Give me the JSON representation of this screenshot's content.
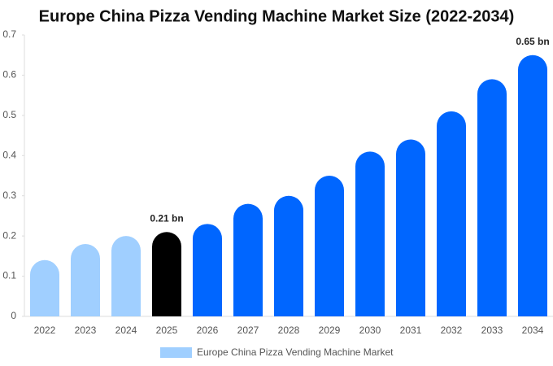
{
  "chart_data": {
    "type": "bar",
    "title": "Europe China Pizza Vending Machine Market Size (2022-2034)",
    "categories": [
      "2022",
      "2023",
      "2024",
      "2025",
      "2026",
      "2027",
      "2028",
      "2029",
      "2030",
      "2031",
      "2032",
      "2033",
      "2034"
    ],
    "series": [
      {
        "name": "Europe China Pizza Vending Machine Market",
        "color": "#a0cfff",
        "values": [
          0.14,
          0.18,
          0.2,
          0.21,
          0.23,
          0.28,
          0.3,
          0.35,
          0.41,
          0.44,
          0.51,
          0.59,
          0.65
        ],
        "value_labels": [
          null,
          null,
          null,
          "0.21 bn",
          null,
          null,
          null,
          null,
          null,
          null,
          null,
          null,
          "0.65 bn"
        ],
        "colors": [
          "#a0cfff",
          "#a0cfff",
          "#a0cfff",
          "#000000",
          "#0066ff",
          "#0066ff",
          "#0066ff",
          "#0066ff",
          "#0066ff",
          "#0066ff",
          "#0066ff",
          "#0066ff",
          "#0066ff"
        ]
      }
    ],
    "ylim": [
      0,
      0.7
    ],
    "yticks": [
      0,
      0.1,
      0.2,
      0.3,
      0.4,
      0.5,
      0.6,
      0.7
    ],
    "grid": false
  }
}
